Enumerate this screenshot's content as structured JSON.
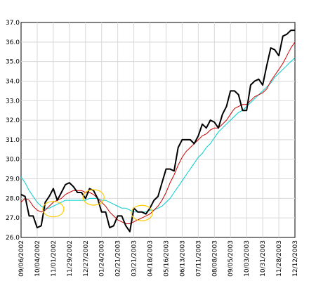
{
  "chart_data": {
    "type": "line",
    "x_labels": [
      "09/06/2002",
      "10/04/2002",
      "11/01/2002",
      "11/29/2002",
      "12/27/2002",
      "01/24/2003",
      "02/21/2003",
      "03/21/2003",
      "04/18/2003",
      "05/16/2003",
      "06/13/2003",
      "07/11/2003",
      "08/08/2003",
      "09/05/2003",
      "10/03/2003",
      "10/31/2003",
      "11/28/2003",
      "12/12/2003"
    ],
    "ylim": [
      26.0,
      37.0
    ],
    "y_ticks": [
      "26.0",
      "27.0",
      "28.0",
      "29.0",
      "30.0",
      "31.0",
      "32.0",
      "33.0",
      "34.0",
      "35.0",
      "36.0",
      "37.0"
    ],
    "grid": true,
    "series": [
      {
        "color": "#000000",
        "values": [
          28.2,
          28.1,
          27.1,
          27.1,
          26.5,
          26.6,
          27.8,
          28.1,
          28.5,
          27.9,
          28.3,
          28.7,
          28.8,
          28.6,
          28.3,
          28.3,
          28.0,
          28.5,
          28.4,
          28.0,
          27.3,
          27.3,
          26.5,
          26.6,
          27.1,
          27.1,
          26.6,
          26.3,
          27.5,
          27.3,
          27.3,
          27.2,
          27.5,
          27.9,
          28.1,
          28.8,
          29.5,
          29.5,
          29.4,
          30.6,
          31.0,
          31.0,
          31.0,
          30.8,
          31.2,
          31.8,
          31.6,
          32.0,
          31.9,
          31.6,
          32.3,
          32.7,
          33.5,
          33.5,
          33.3,
          32.5,
          32.5,
          33.8,
          34.0,
          34.1,
          33.8,
          34.8,
          35.7,
          35.6,
          35.3,
          36.3,
          36.4,
          36.6,
          36.6
        ]
      },
      {
        "color": "#cc0000",
        "values": [
          27.8,
          28.0,
          27.9,
          27.6,
          27.4,
          27.3,
          27.4,
          27.6,
          27.8,
          27.9,
          28.0,
          28.2,
          28.3,
          28.4,
          28.4,
          28.4,
          28.3,
          28.3,
          28.2,
          28.0,
          27.8,
          27.6,
          27.3,
          27.1,
          26.9,
          26.8,
          26.7,
          26.7,
          26.8,
          26.9,
          27.0,
          27.1,
          27.2,
          27.4,
          27.6,
          27.9,
          28.3,
          28.8,
          29.2,
          29.7,
          30.1,
          30.4,
          30.6,
          30.8,
          31.0,
          31.2,
          31.3,
          31.5,
          31.6,
          31.6,
          31.8,
          32.0,
          32.3,
          32.6,
          32.7,
          32.8,
          32.8,
          33.0,
          33.2,
          33.3,
          33.4,
          33.6,
          34.0,
          34.3,
          34.6,
          34.9,
          35.3,
          35.7,
          36.0
        ]
      },
      {
        "color": "#00cccc",
        "values": [
          29.1,
          28.8,
          28.4,
          28.1,
          27.8,
          27.6,
          27.5,
          27.5,
          27.6,
          27.7,
          27.8,
          27.9,
          27.9,
          27.9,
          27.9,
          27.9,
          27.9,
          28.0,
          28.0,
          28.0,
          27.9,
          27.9,
          27.8,
          27.7,
          27.6,
          27.5,
          27.5,
          27.4,
          27.3,
          27.3,
          27.3,
          27.3,
          27.4,
          27.4,
          27.5,
          27.6,
          27.8,
          28.0,
          28.3,
          28.6,
          28.9,
          29.2,
          29.5,
          29.8,
          30.1,
          30.3,
          30.6,
          30.8,
          31.1,
          31.4,
          31.6,
          31.8,
          32.0,
          32.2,
          32.4,
          32.5,
          32.7,
          32.9,
          33.1,
          33.3,
          33.5,
          33.7,
          33.9,
          34.2,
          34.4,
          34.6,
          34.8,
          35.0,
          35.2
        ]
      }
    ],
    "annotations": [
      {
        "shape": "ellipse",
        "color": "#ffcc00",
        "x_index": 8,
        "y": 27.45
      },
      {
        "shape": "ellipse",
        "color": "#ffcc00",
        "x_index": 18,
        "y": 28.05
      },
      {
        "shape": "ellipse",
        "color": "#ffcc00",
        "x_index": 30,
        "y": 27.25
      }
    ]
  }
}
